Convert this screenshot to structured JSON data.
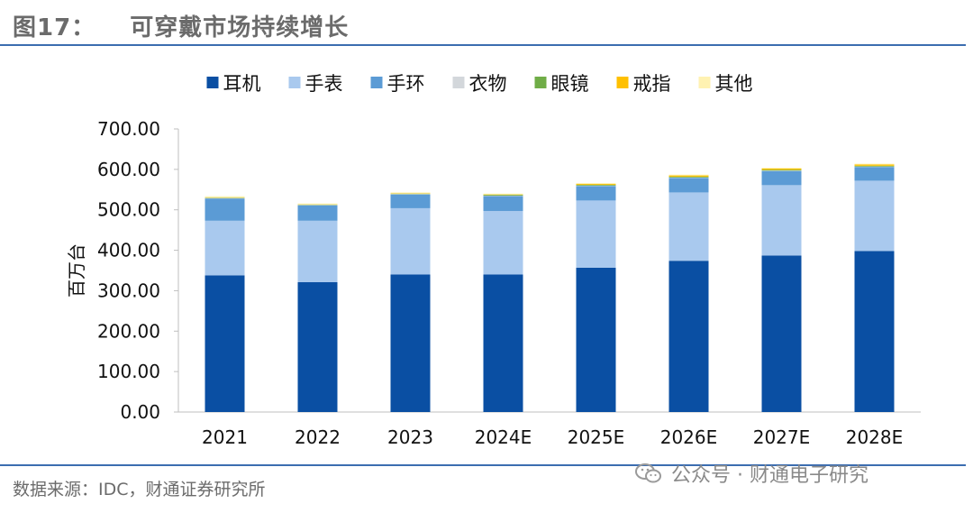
{
  "header": {
    "figure_no": "图17：",
    "title": "可穿戴市场持续增长"
  },
  "footer": {
    "source": "数据来源：IDC，财通证券研究所",
    "watermark": "公众号 · 财通电子研究"
  },
  "colors": {
    "header_text": "#6b6b6b",
    "rule": "#3c6db0",
    "axis": "#bfbfbf"
  },
  "chart_data": {
    "type": "bar",
    "stacked": true,
    "title": "",
    "xlabel": "",
    "ylabel": "百万台",
    "ylim": [
      0,
      700
    ],
    "yticks": [
      "0.00",
      "100.00",
      "200.00",
      "300.00",
      "400.00",
      "500.00",
      "600.00",
      "700.00"
    ],
    "grid": false,
    "legend_position": "top-center",
    "categories": [
      "2021",
      "2022",
      "2023",
      "2024E",
      "2025E",
      "2026E",
      "2027E",
      "2028E"
    ],
    "series": [
      {
        "name": "耳机",
        "color": "#0a4fa3",
        "values": [
          338,
          321,
          340,
          340,
          357,
          374,
          387,
          398
        ]
      },
      {
        "name": "手表",
        "color": "#a9c9ee",
        "values": [
          135,
          152,
          164,
          157,
          166,
          169,
          174,
          174
        ]
      },
      {
        "name": "手环",
        "color": "#5b9bd5",
        "values": [
          55,
          38,
          34,
          37,
          36,
          36,
          35,
          34
        ]
      },
      {
        "name": "衣物",
        "color": "#d3d7db",
        "values": [
          1,
          1,
          1,
          1,
          1,
          1,
          1,
          1
        ]
      },
      {
        "name": "眼镜",
        "color": "#70ad47",
        "values": [
          1,
          1,
          1,
          2,
          2,
          2,
          2,
          2
        ]
      },
      {
        "name": "戒指",
        "color": "#ffc000",
        "values": [
          0.5,
          0.5,
          1,
          1,
          2,
          3,
          3,
          3
        ]
      },
      {
        "name": "其他",
        "color": "#fff2b2",
        "values": [
          3,
          2,
          2,
          2,
          2,
          2,
          2,
          2
        ]
      }
    ]
  }
}
